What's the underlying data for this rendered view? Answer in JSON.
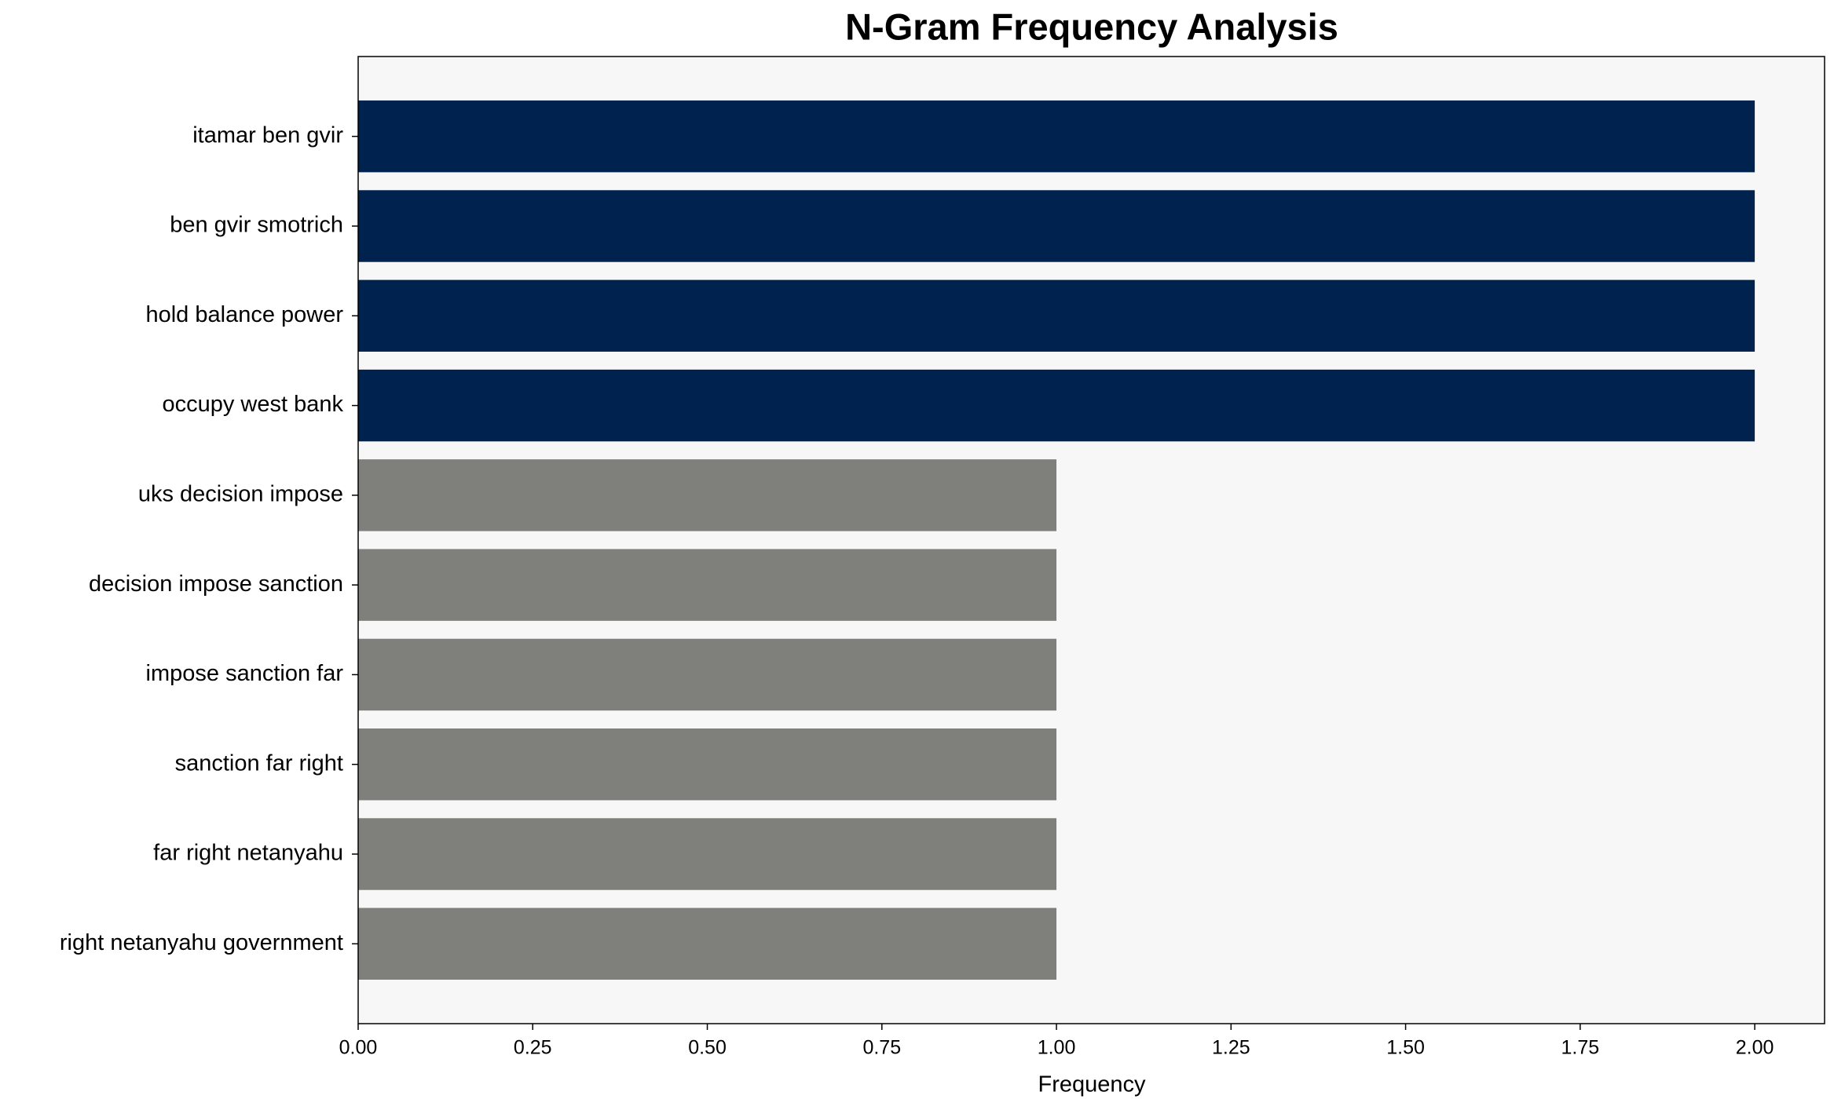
{
  "chart_data": {
    "type": "barh",
    "title": "N-Gram Frequency Analysis",
    "xlabel": "Frequency",
    "categories": [
      "itamar ben gvir",
      "ben gvir smotrich",
      "hold balance power",
      "occupy west bank",
      "uks decision impose",
      "decision impose sanction",
      "impose sanction far",
      "sanction far right",
      "far right netanyahu",
      "right netanyahu government"
    ],
    "values": [
      2,
      2,
      2,
      2,
      1,
      1,
      1,
      1,
      1,
      1
    ],
    "colors": [
      "#00224e",
      "#00224e",
      "#00224e",
      "#00224e",
      "#7f7f7b",
      "#7f7f7b",
      "#7f7f7b",
      "#7f7f7b",
      "#7f7f7b",
      "#7f7f7b"
    ],
    "xlim": [
      0,
      2.1
    ],
    "xticks": [
      {
        "value": 0,
        "label": "0.00"
      },
      {
        "value": 0.25,
        "label": "0.25"
      },
      {
        "value": 0.5,
        "label": "0.50"
      },
      {
        "value": 0.75,
        "label": "0.75"
      },
      {
        "value": 1,
        "label": "1.00"
      },
      {
        "value": 1.25,
        "label": "1.25"
      },
      {
        "value": 1.5,
        "label": "1.50"
      },
      {
        "value": 1.75,
        "label": "1.75"
      },
      {
        "value": 2,
        "label": "2.00"
      }
    ],
    "background": "#f7f7f7"
  }
}
